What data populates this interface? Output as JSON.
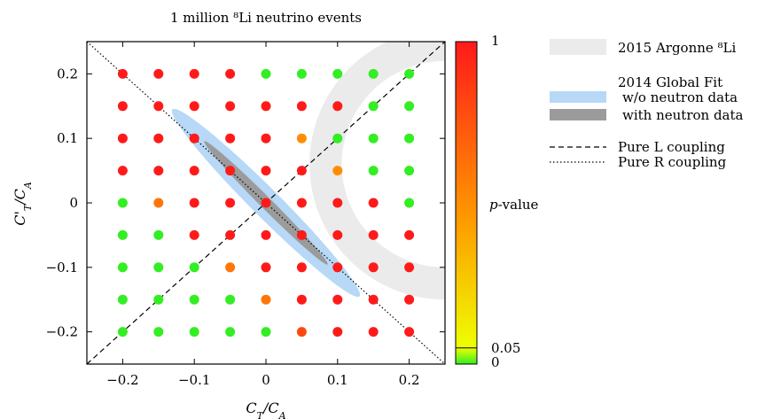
{
  "chart_data": {
    "type": "scatter",
    "title": "1 million ⁸Li neutrino events",
    "xlabel": "C_T/C_A",
    "ylabel": "C'_T/C_A",
    "xlim": [
      -0.25,
      0.25
    ],
    "ylim": [
      -0.25,
      0.25
    ],
    "xticks": [
      -0.2,
      -0.1,
      0,
      0.1,
      0.2
    ],
    "xtick_labels": [
      "−0.2",
      "−0.1",
      "0",
      "0.1",
      "0.2"
    ],
    "yticks": [
      -0.2,
      -0.1,
      0,
      0.1,
      0.2
    ],
    "ytick_labels": [
      "−0.2",
      "−0.1",
      "0",
      "0.1",
      "0.2"
    ],
    "grid": false,
    "colorbar": {
      "label": "p-value",
      "tick_values": [
        0,
        0.05,
        1
      ],
      "tick_labels": [
        "0",
        "0.05",
        "1"
      ],
      "colors": {
        "low": "#33ee22",
        "threshold": "#eeff00",
        "mid": "#ff9900",
        "high": "#ff1a1a"
      }
    },
    "grid_values": [
      -0.2,
      -0.15,
      -0.1,
      -0.05,
      0,
      0.05,
      0.1,
      0.15,
      0.2
    ],
    "pvalue_rows": [
      {
        "y": 0.2,
        "p": [
          1,
          1,
          1,
          1,
          0,
          0,
          0,
          0,
          0
        ]
      },
      {
        "y": 0.15,
        "p": [
          1,
          1,
          1,
          1,
          1,
          1,
          1,
          0,
          0
        ]
      },
      {
        "y": 0.1,
        "p": [
          1,
          1,
          1,
          1,
          1,
          0.5,
          0,
          0,
          0
        ]
      },
      {
        "y": 0.05,
        "p": [
          1,
          1,
          1,
          1,
          1,
          1,
          0.5,
          0,
          0
        ]
      },
      {
        "y": 0,
        "p": [
          0,
          0.6,
          1,
          1,
          1,
          1,
          1,
          1,
          0
        ]
      },
      {
        "y": -0.05,
        "p": [
          0,
          0,
          1,
          1,
          1,
          1,
          1,
          1,
          1
        ]
      },
      {
        "y": -0.1,
        "p": [
          0,
          0,
          0,
          0.6,
          1,
          1,
          1,
          1,
          1
        ]
      },
      {
        "y": -0.15,
        "p": [
          0,
          0,
          0,
          0,
          0.6,
          1,
          1,
          1,
          1
        ]
      },
      {
        "y": -0.2,
        "p": [
          0,
          0,
          0,
          0,
          0,
          0.8,
          1,
          1,
          1
        ]
      }
    ],
    "regions": [
      {
        "name": "2015 Argonne ⁸Li",
        "color": "#ebebeb"
      },
      {
        "name": "w/o neutron data",
        "color": "#b7d8f7"
      },
      {
        "name": "with neutron data",
        "color": "#9b9b9b"
      }
    ],
    "lines": [
      {
        "name": "Pure L coupling",
        "style": "dashed",
        "slope": 1
      },
      {
        "name": "Pure R coupling",
        "style": "dotted",
        "slope": -1
      }
    ],
    "legend": {
      "placement": "right",
      "group_title": "2014 Global Fit"
    }
  }
}
